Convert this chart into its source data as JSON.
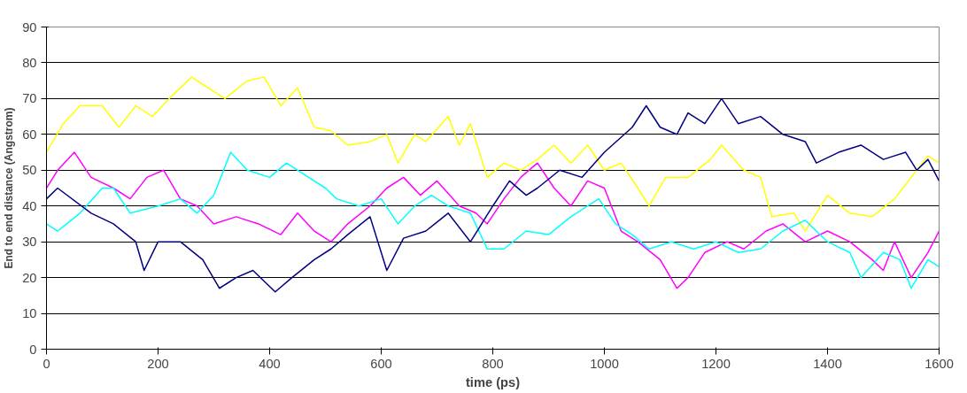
{
  "chart_data": {
    "type": "line",
    "xlabel": "time (ps)",
    "ylabel": "End to end distance (Angstrom)",
    "xlim": [
      0,
      1600
    ],
    "ylim": [
      0,
      90
    ],
    "xticks": [
      0,
      200,
      400,
      600,
      800,
      1000,
      1200,
      1400,
      1600
    ],
    "yticks": [
      0,
      10,
      20,
      30,
      40,
      50,
      60,
      70,
      80,
      90
    ],
    "grid": "y",
    "line_style": "solid",
    "series": [
      {
        "color": "#ffff00",
        "x": [
          0,
          30,
          60,
          100,
          130,
          160,
          190,
          220,
          260,
          290,
          320,
          360,
          390,
          420,
          450,
          480,
          510,
          540,
          580,
          610,
          630,
          660,
          680,
          720,
          740,
          760,
          790,
          820,
          850,
          880,
          910,
          940,
          970,
          1000,
          1030,
          1060,
          1080,
          1110,
          1150,
          1190,
          1210,
          1250,
          1280,
          1300,
          1340,
          1360,
          1400,
          1440,
          1480,
          1520,
          1550,
          1580,
          1600
        ],
        "values": [
          55,
          63,
          68,
          68,
          62,
          68,
          65,
          70,
          76,
          73,
          70,
          75,
          76,
          68,
          73,
          62,
          61,
          57,
          58,
          60,
          52,
          60,
          58,
          65,
          57,
          63,
          48,
          52,
          50,
          53,
          57,
          52,
          57,
          50,
          52,
          45,
          40,
          48,
          48,
          53,
          57,
          50,
          48,
          37,
          38,
          33,
          43,
          38,
          37,
          42,
          48,
          54,
          52
        ]
      },
      {
        "color": "#ff00ff",
        "x": [
          0,
          20,
          50,
          80,
          120,
          150,
          180,
          210,
          240,
          270,
          300,
          340,
          380,
          420,
          450,
          480,
          510,
          540,
          580,
          610,
          640,
          670,
          700,
          740,
          770,
          790,
          820,
          850,
          880,
          910,
          940,
          970,
          1000,
          1030,
          1060,
          1100,
          1130,
          1150,
          1180,
          1220,
          1250,
          1290,
          1320,
          1360,
          1400,
          1440,
          1480,
          1500,
          1520,
          1550,
          1580,
          1600
        ],
        "values": [
          45,
          50,
          55,
          48,
          45,
          42,
          48,
          50,
          42,
          40,
          35,
          37,
          35,
          32,
          38,
          33,
          30,
          35,
          40,
          45,
          48,
          43,
          47,
          40,
          38,
          35,
          42,
          48,
          52,
          45,
          40,
          47,
          45,
          33,
          30,
          25,
          17,
          20,
          27,
          30,
          28,
          33,
          35,
          30,
          33,
          30,
          25,
          22,
          30,
          20,
          27,
          33
        ]
      },
      {
        "color": "#00ffff",
        "x": [
          0,
          20,
          60,
          100,
          120,
          150,
          200,
          240,
          270,
          300,
          330,
          360,
          400,
          430,
          470,
          500,
          520,
          560,
          600,
          630,
          660,
          690,
          720,
          760,
          790,
          820,
          860,
          900,
          940,
          970,
          990,
          1020,
          1050,
          1080,
          1120,
          1160,
          1200,
          1240,
          1280,
          1320,
          1360,
          1400,
          1440,
          1460,
          1500,
          1530,
          1550,
          1580,
          1600
        ],
        "values": [
          35,
          33,
          38,
          45,
          45,
          38,
          40,
          42,
          38,
          43,
          55,
          50,
          48,
          52,
          48,
          45,
          42,
          40,
          42,
          35,
          40,
          43,
          40,
          38,
          28,
          28,
          33,
          32,
          37,
          40,
          42,
          35,
          32,
          28,
          30,
          28,
          30,
          27,
          28,
          33,
          36,
          30,
          27,
          20,
          27,
          25,
          17,
          25,
          23
        ]
      },
      {
        "color": "#000080",
        "x": [
          0,
          20,
          80,
          120,
          160,
          175,
          200,
          240,
          280,
          310,
          340,
          370,
          410,
          440,
          480,
          510,
          540,
          580,
          610,
          640,
          680,
          720,
          760,
          800,
          830,
          860,
          880,
          920,
          960,
          1000,
          1050,
          1075,
          1100,
          1130,
          1150,
          1180,
          1210,
          1240,
          1280,
          1320,
          1360,
          1380,
          1420,
          1460,
          1500,
          1540,
          1560,
          1580,
          1600
        ],
        "values": [
          42,
          45,
          38,
          35,
          30,
          22,
          30,
          30,
          25,
          17,
          20,
          22,
          16,
          20,
          25,
          28,
          32,
          37,
          22,
          31,
          33,
          38,
          30,
          40,
          47,
          43,
          45,
          50,
          48,
          55,
          62,
          68,
          62,
          60,
          66,
          63,
          70,
          63,
          65,
          60,
          58,
          52,
          55,
          57,
          53,
          55,
          50,
          53,
          47
        ]
      }
    ]
  }
}
